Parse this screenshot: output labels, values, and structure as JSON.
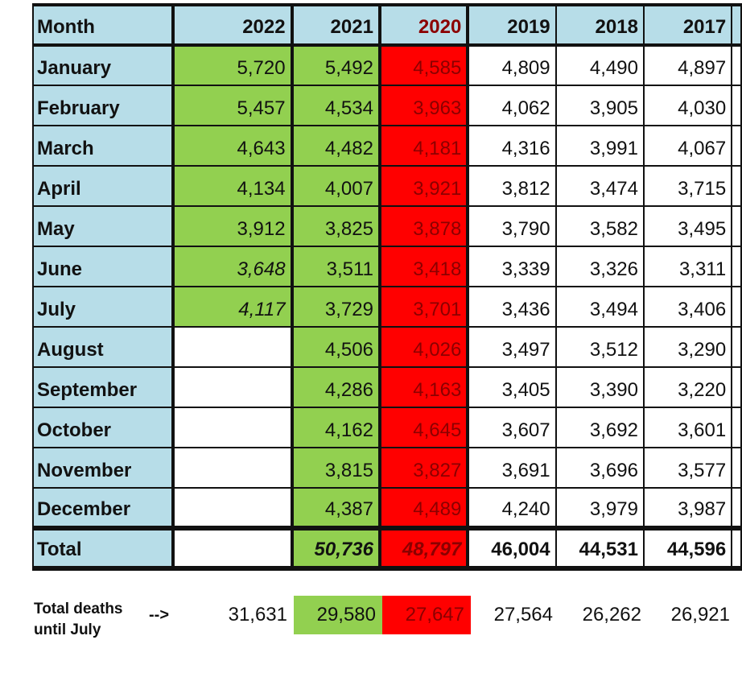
{
  "headers": [
    "Month",
    "2022",
    "2021",
    "2020",
    "2019",
    "2018",
    "2017"
  ],
  "rows": [
    {
      "month": "January",
      "values": [
        "5,720",
        "5,492",
        "4,585",
        "4,809",
        "4,490",
        "4,897"
      ]
    },
    {
      "month": "February",
      "values": [
        "5,457",
        "4,534",
        "3,963",
        "4,062",
        "3,905",
        "4,030"
      ]
    },
    {
      "month": "March",
      "values": [
        "4,643",
        "4,482",
        "4,181",
        "4,316",
        "3,991",
        "4,067"
      ]
    },
    {
      "month": "April",
      "values": [
        "4,134",
        "4,007",
        "3,921",
        "3,812",
        "3,474",
        "3,715"
      ]
    },
    {
      "month": "May",
      "values": [
        "3,912",
        "3,825",
        "3,878",
        "3,790",
        "3,582",
        "3,495"
      ]
    },
    {
      "month": "June",
      "values": [
        "3,648",
        "3,511",
        "3,418",
        "3,339",
        "3,326",
        "3,311"
      ]
    },
    {
      "month": "July",
      "values": [
        "4,117",
        "3,729",
        "3,701",
        "3,436",
        "3,494",
        "3,406"
      ]
    },
    {
      "month": "August",
      "values": [
        "",
        "4,506",
        "4,026",
        "3,497",
        "3,512",
        "3,290"
      ]
    },
    {
      "month": "September",
      "values": [
        "",
        "4,286",
        "4,163",
        "3,405",
        "3,390",
        "3,220"
      ]
    },
    {
      "month": "October",
      "values": [
        "",
        "4,162",
        "4,645",
        "3,607",
        "3,692",
        "3,601"
      ]
    },
    {
      "month": "November",
      "values": [
        "",
        "3,815",
        "3,827",
        "3,691",
        "3,696",
        "3,577"
      ]
    },
    {
      "month": "December",
      "values": [
        "",
        "4,387",
        "4,489",
        "4,240",
        "3,979",
        "3,987"
      ]
    }
  ],
  "total": {
    "label": "Total",
    "values": [
      "",
      "50,736",
      "48,797",
      "46,004",
      "44,531",
      "44,596"
    ]
  },
  "until_july": {
    "label": "Total deaths until July",
    "arrow": "-->",
    "values": [
      "31,631",
      "29,580",
      "27,647",
      "27,564",
      "26,262",
      "26,921"
    ]
  },
  "colors": {
    "green": "#92d050",
    "red": "#ff0000",
    "blue": "#b7dde8"
  }
}
